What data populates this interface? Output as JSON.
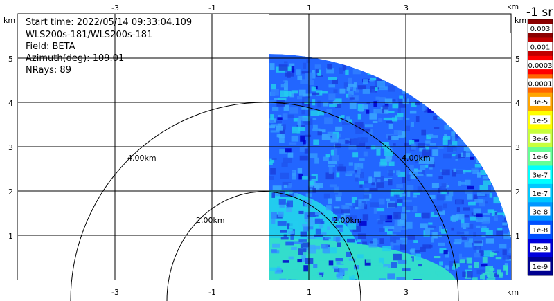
{
  "info": {
    "start_time": "Start time: 2022/05/14 09:33:04.109",
    "instrument": "WLS200s-181/WLS200s-181",
    "field": "Field: BETA",
    "azimuth": "Azimuth(deg): 109.01",
    "nrays": "NRays: 89"
  },
  "axes": {
    "unit_label": "km",
    "x_ticks": [
      "-3",
      "-1",
      "1",
      "3"
    ],
    "y_ticks": [
      "1",
      "2",
      "3",
      "4",
      "5"
    ]
  },
  "range_rings": {
    "labels": [
      "2.00km",
      "4.00km"
    ]
  },
  "colorbar": {
    "title": "-1 sr",
    "labels": [
      "0.003",
      "0.001",
      "0.0003",
      "0.0001",
      "3e-5",
      "1e-5",
      "3e-6",
      "1e-6",
      "3e-7",
      "1e-7",
      "3e-8",
      "1e-8",
      "3e-9",
      "1e-9"
    ],
    "colors": [
      "#8b0000",
      "#c00000",
      "#ff0000",
      "#ff6600",
      "#ffa500",
      "#ffff00",
      "#c8ff3c",
      "#64ff96",
      "#00ffff",
      "#00c8ff",
      "#0096ff",
      "#0050ff",
      "#0000dd",
      "#000090"
    ]
  },
  "palette": {
    "sector_blue": "#2266ff",
    "sector_mid": "#3399ff",
    "sector_cyan": "#22ccee",
    "sector_teal": "#33ddcc"
  }
}
